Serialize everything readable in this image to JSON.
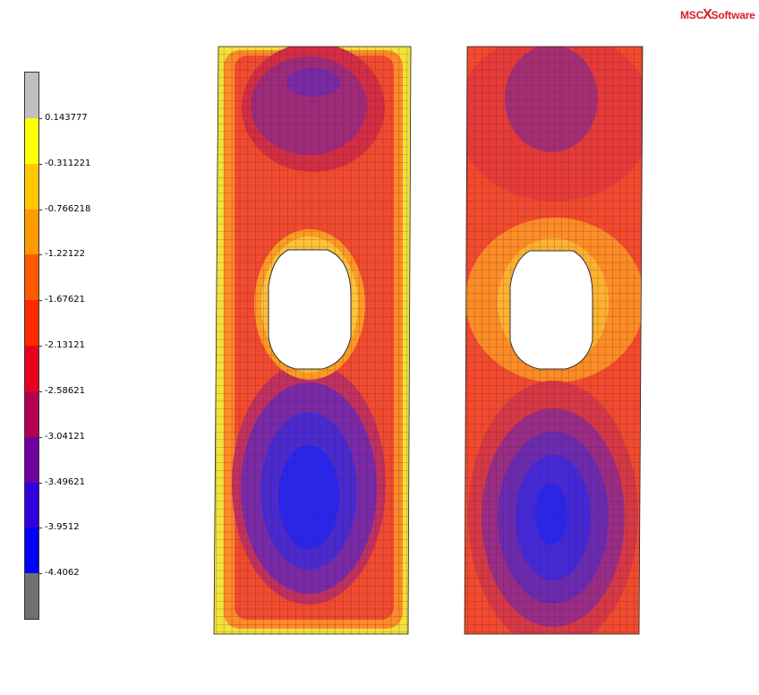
{
  "logo": {
    "left": "MSC",
    "mark": "X",
    "right": "Software"
  },
  "legend": {
    "labels": [
      "0.143777",
      "-0.311221",
      "-0.766218",
      "-1.22122",
      "-1.67621",
      "-2.13121",
      "-2.58621",
      "-3.04121",
      "-3.49621",
      "-3.9512",
      "-4.4062"
    ],
    "colors": [
      "#c0c0c0",
      "#ffff00",
      "#ffc800",
      "#ff9a00",
      "#ff5a00",
      "#ff2a00",
      "#e80020",
      "#b40050",
      "#6e00a0",
      "#3200dc",
      "#0000ff",
      "#707070"
    ]
  }
}
